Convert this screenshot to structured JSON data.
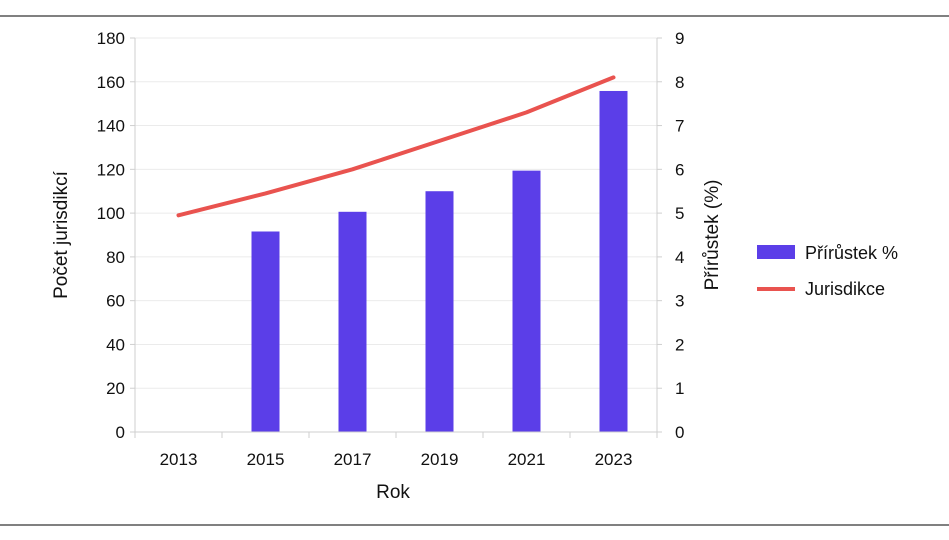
{
  "chart_data": {
    "type": "bar",
    "categories": [
      "2013",
      "2015",
      "2017",
      "2019",
      "2021",
      "2023"
    ],
    "series": [
      {
        "name": "Přírůstek %",
        "type": "bar",
        "axis": "right",
        "color": "#5b3ee8",
        "values": [
          null,
          4.58,
          5.03,
          5.5,
          5.97,
          7.79
        ]
      },
      {
        "name": "Jurisdikce",
        "type": "line",
        "axis": "left",
        "color": "#e9534f",
        "values": [
          99,
          109,
          120,
          133,
          146,
          162
        ]
      }
    ],
    "xlabel": "Rok",
    "ylabel": "Počet jurisdikcí",
    "y2label": "Přírůstek (%)",
    "ylim": [
      0,
      180
    ],
    "y2lim": [
      0,
      9
    ],
    "yticks": [
      "0",
      "20",
      "40",
      "60",
      "80",
      "100",
      "120",
      "140",
      "160",
      "180"
    ],
    "y2ticks": [
      "0",
      "1",
      "2",
      "3",
      "4",
      "5",
      "6",
      "7",
      "8",
      "9"
    ],
    "grid": true,
    "legend_position": "right"
  }
}
